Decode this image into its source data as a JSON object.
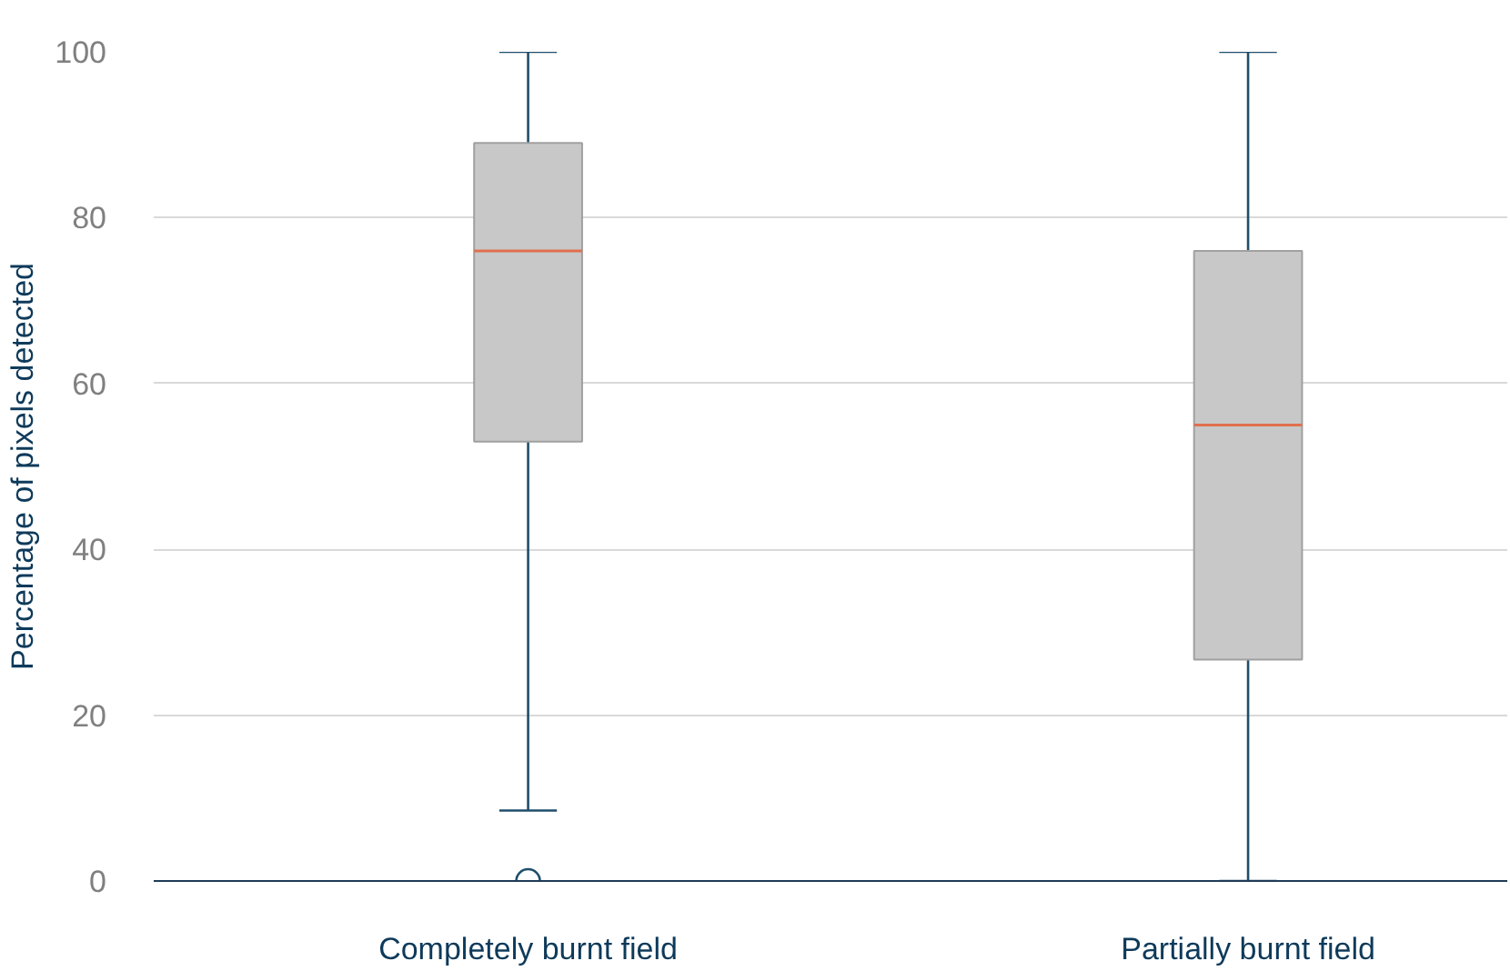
{
  "chart_data": {
    "type": "box",
    "ylabel": "Percentage of pixels detected",
    "categories": [
      "Completely burnt field",
      "Partially burnt field"
    ],
    "boxes": [
      {
        "low": 8.5,
        "q1": 53,
        "median": 76,
        "q3": 89,
        "high": 100,
        "outliers": [
          0
        ]
      },
      {
        "low": 0,
        "q1": 26.7,
        "median": 55,
        "q3": 76,
        "high": 100
      }
    ],
    "color": "#c8c8c8",
    "ylim": [
      0,
      100
    ],
    "yticks": [
      0,
      20,
      40,
      60,
      80,
      100
    ],
    "grid": "y"
  }
}
